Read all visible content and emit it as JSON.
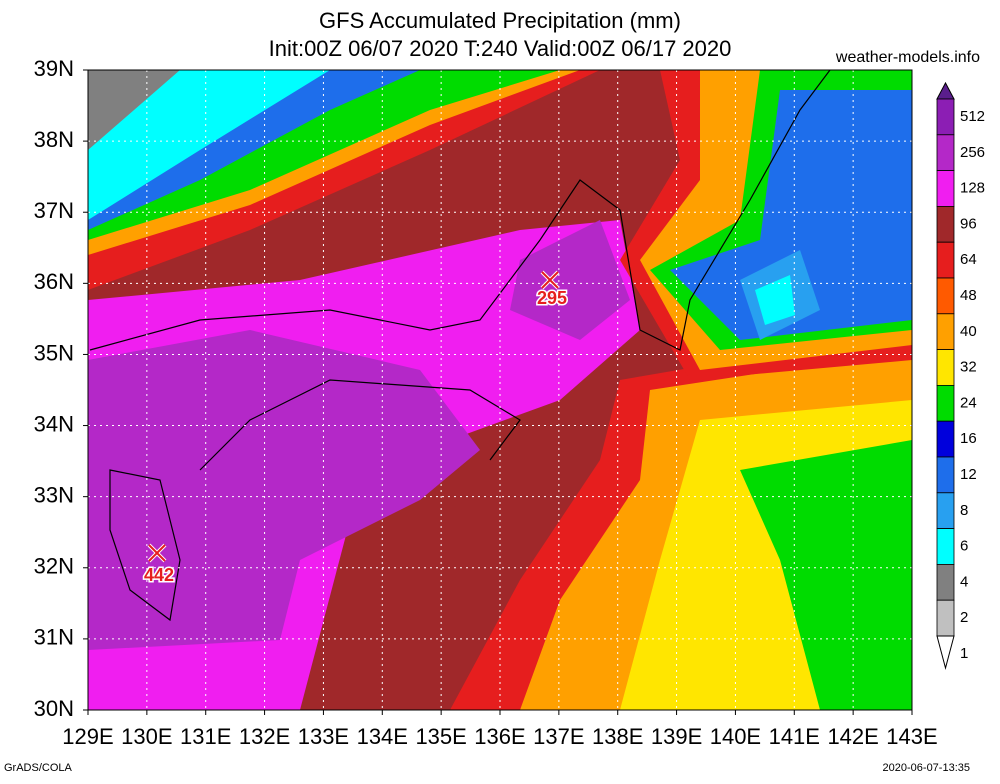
{
  "title": "GFS Accumulated Precipitation (mm)",
  "subtitle": "Init:00Z 06/07 2020 T:240 Valid:00Z 06/17 2020",
  "source": "weather-models.info",
  "footer_left": "GrADS/COLA",
  "footer_right": "2020-06-07-13:35",
  "x_labels": [
    "129E",
    "130E",
    "131E",
    "132E",
    "133E",
    "134E",
    "135E",
    "136E",
    "137E",
    "138E",
    "139E",
    "140E",
    "141E",
    "142E",
    "143E"
  ],
  "y_labels": [
    "30N",
    "31N",
    "32N",
    "33N",
    "34N",
    "35N",
    "36N",
    "37N",
    "38N",
    "39N"
  ],
  "markers": [
    "295",
    "442"
  ],
  "colorbar": {
    "levels": [
      512,
      256,
      128,
      96,
      64,
      48,
      40,
      32,
      24,
      16,
      12,
      8,
      6,
      4,
      2,
      1
    ],
    "colors": [
      "#5a1e8c",
      "#8c1eb4",
      "#b428c8",
      "#f01ef0",
      "#a0282a",
      "#e61e1e",
      "#ff5a00",
      "#ffa000",
      "#ffe600",
      "#00dc00",
      "#0000dc",
      "#1e6eeb",
      "#28a0f0",
      "#00ffff",
      "#808080",
      "#c0c0c0",
      "#ffffff"
    ]
  }
}
